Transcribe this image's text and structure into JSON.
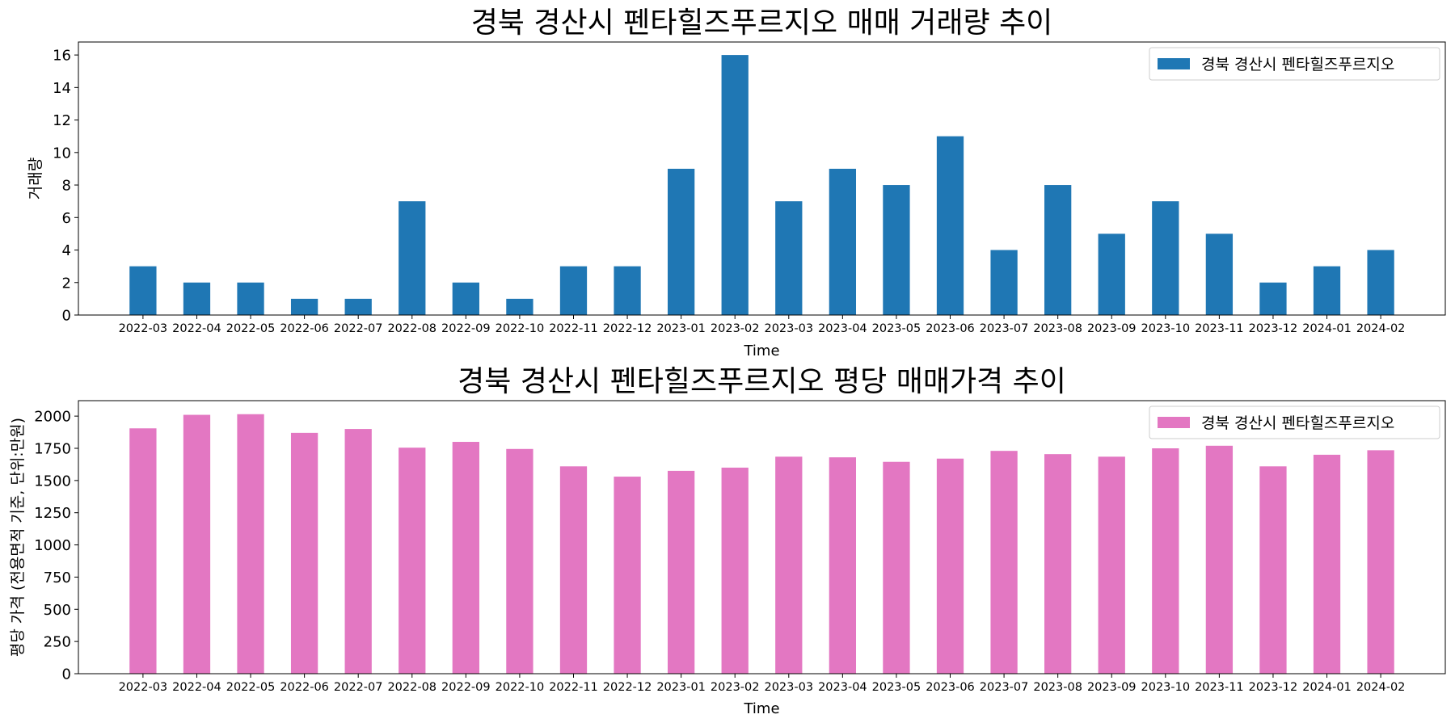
{
  "chart_data": [
    {
      "type": "bar",
      "title": "경북 경산시 펜타힐즈푸르지오 매매 거래량 추이",
      "xlabel": "Time",
      "ylabel": "거래량",
      "ylim": [
        0,
        16.8
      ],
      "yticks": [
        0,
        2,
        4,
        6,
        8,
        10,
        12,
        14,
        16
      ],
      "legend": "top-right",
      "grid": false,
      "color": "#1f77b4",
      "categories": [
        "2022-03",
        "2022-04",
        "2022-05",
        "2022-06",
        "2022-07",
        "2022-08",
        "2022-09",
        "2022-10",
        "2022-11",
        "2022-12",
        "2023-01",
        "2023-02",
        "2023-03",
        "2023-04",
        "2023-05",
        "2023-06",
        "2023-07",
        "2023-08",
        "2023-09",
        "2023-10",
        "2023-11",
        "2023-12",
        "2024-01",
        "2024-02"
      ],
      "series": [
        {
          "name": "경북 경산시 펜타힐즈푸르지오",
          "values": [
            3,
            2,
            2,
            1,
            1,
            7,
            2,
            1,
            3,
            3,
            9,
            16,
            7,
            9,
            8,
            11,
            4,
            8,
            5,
            7,
            5,
            2,
            3,
            4
          ]
        }
      ]
    },
    {
      "type": "bar",
      "title": "경북 경산시 펜타힐즈푸르지오 평당 매매가격 추이",
      "xlabel": "Time",
      "ylabel": "평당 가격 (전용면적 기준, 단위:만원)",
      "ylim": [
        0,
        2120
      ],
      "yticks": [
        0,
        250,
        500,
        750,
        1000,
        1250,
        1500,
        1750,
        2000
      ],
      "legend": "top-right",
      "grid": false,
      "color": "#e377c2",
      "categories": [
        "2022-03",
        "2022-04",
        "2022-05",
        "2022-06",
        "2022-07",
        "2022-08",
        "2022-09",
        "2022-10",
        "2022-11",
        "2022-12",
        "2023-01",
        "2023-02",
        "2023-03",
        "2023-04",
        "2023-05",
        "2023-06",
        "2023-07",
        "2023-08",
        "2023-09",
        "2023-10",
        "2023-11",
        "2023-12",
        "2024-01",
        "2024-02"
      ],
      "series": [
        {
          "name": "경북 경산시 펜타힐즈푸르지오",
          "values": [
            1905,
            2010,
            2015,
            1870,
            1900,
            1755,
            1800,
            1745,
            1610,
            1530,
            1575,
            1600,
            1685,
            1680,
            1645,
            1670,
            1730,
            1705,
            1685,
            1750,
            1770,
            1610,
            1700,
            1735
          ]
        }
      ]
    }
  ]
}
